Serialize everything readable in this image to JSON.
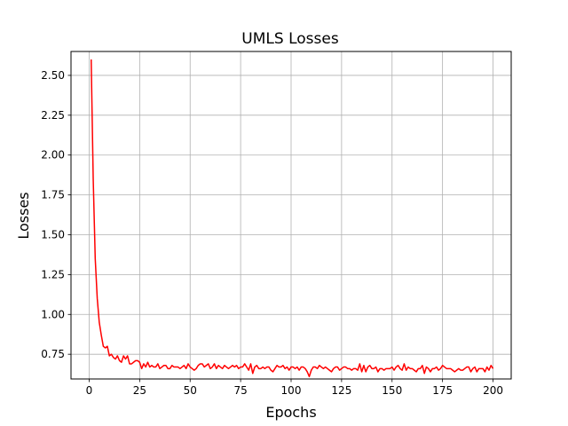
{
  "chart_data": {
    "type": "line",
    "title": "UMLS Losses",
    "xlabel": "Epochs",
    "ylabel": "Losses",
    "xlim": [
      -9,
      209
    ],
    "ylim": [
      0.595,
      2.65
    ],
    "xticks": [
      0,
      25,
      50,
      75,
      100,
      125,
      150,
      175,
      200
    ],
    "yticks": [
      0.75,
      1.0,
      1.25,
      1.5,
      1.75,
      2.0,
      2.25,
      2.5
    ],
    "ytick_labels": [
      "0.75",
      "1.00",
      "1.25",
      "1.50",
      "1.75",
      "2.00",
      "2.25",
      "2.50"
    ],
    "grid": true,
    "colors": {
      "series": "#ff0000",
      "grid": "#b0b0b0",
      "axes": "#000000"
    },
    "series": [
      {
        "x_start": 1,
        "x_step": 1,
        "values": [
          2.6,
          1.85,
          1.35,
          1.1,
          0.95,
          0.87,
          0.8,
          0.79,
          0.8,
          0.74,
          0.75,
          0.73,
          0.72,
          0.74,
          0.71,
          0.7,
          0.74,
          0.72,
          0.74,
          0.69,
          0.69,
          0.7,
          0.71,
          0.71,
          0.7,
          0.66,
          0.69,
          0.67,
          0.7,
          0.67,
          0.68,
          0.67,
          0.67,
          0.69,
          0.66,
          0.67,
          0.68,
          0.68,
          0.66,
          0.66,
          0.68,
          0.67,
          0.67,
          0.67,
          0.66,
          0.67,
          0.68,
          0.66,
          0.69,
          0.67,
          0.66,
          0.65,
          0.66,
          0.68,
          0.69,
          0.69,
          0.67,
          0.68,
          0.69,
          0.66,
          0.67,
          0.69,
          0.66,
          0.68,
          0.67,
          0.66,
          0.68,
          0.67,
          0.66,
          0.67,
          0.68,
          0.67,
          0.68,
          0.66,
          0.67,
          0.67,
          0.69,
          0.67,
          0.65,
          0.69,
          0.63,
          0.67,
          0.68,
          0.66,
          0.66,
          0.67,
          0.66,
          0.67,
          0.67,
          0.65,
          0.64,
          0.66,
          0.68,
          0.67,
          0.67,
          0.68,
          0.66,
          0.67,
          0.65,
          0.67,
          0.67,
          0.66,
          0.67,
          0.65,
          0.67,
          0.67,
          0.66,
          0.64,
          0.61,
          0.65,
          0.67,
          0.67,
          0.66,
          0.68,
          0.67,
          0.66,
          0.67,
          0.66,
          0.65,
          0.64,
          0.66,
          0.67,
          0.67,
          0.65,
          0.66,
          0.67,
          0.67,
          0.66,
          0.66,
          0.65,
          0.66,
          0.66,
          0.65,
          0.69,
          0.64,
          0.68,
          0.64,
          0.67,
          0.68,
          0.66,
          0.66,
          0.67,
          0.64,
          0.66,
          0.66,
          0.65,
          0.66,
          0.66,
          0.66,
          0.67,
          0.65,
          0.67,
          0.68,
          0.66,
          0.65,
          0.69,
          0.65,
          0.67,
          0.66,
          0.66,
          0.65,
          0.64,
          0.66,
          0.66,
          0.68,
          0.63,
          0.67,
          0.66,
          0.64,
          0.66,
          0.66,
          0.67,
          0.65,
          0.66,
          0.68,
          0.67,
          0.66,
          0.66,
          0.66,
          0.65,
          0.64,
          0.65,
          0.66,
          0.65,
          0.65,
          0.66,
          0.67,
          0.67,
          0.64,
          0.66,
          0.67,
          0.64,
          0.66,
          0.66,
          0.66,
          0.64,
          0.67,
          0.65,
          0.68,
          0.66
        ]
      }
    ]
  }
}
